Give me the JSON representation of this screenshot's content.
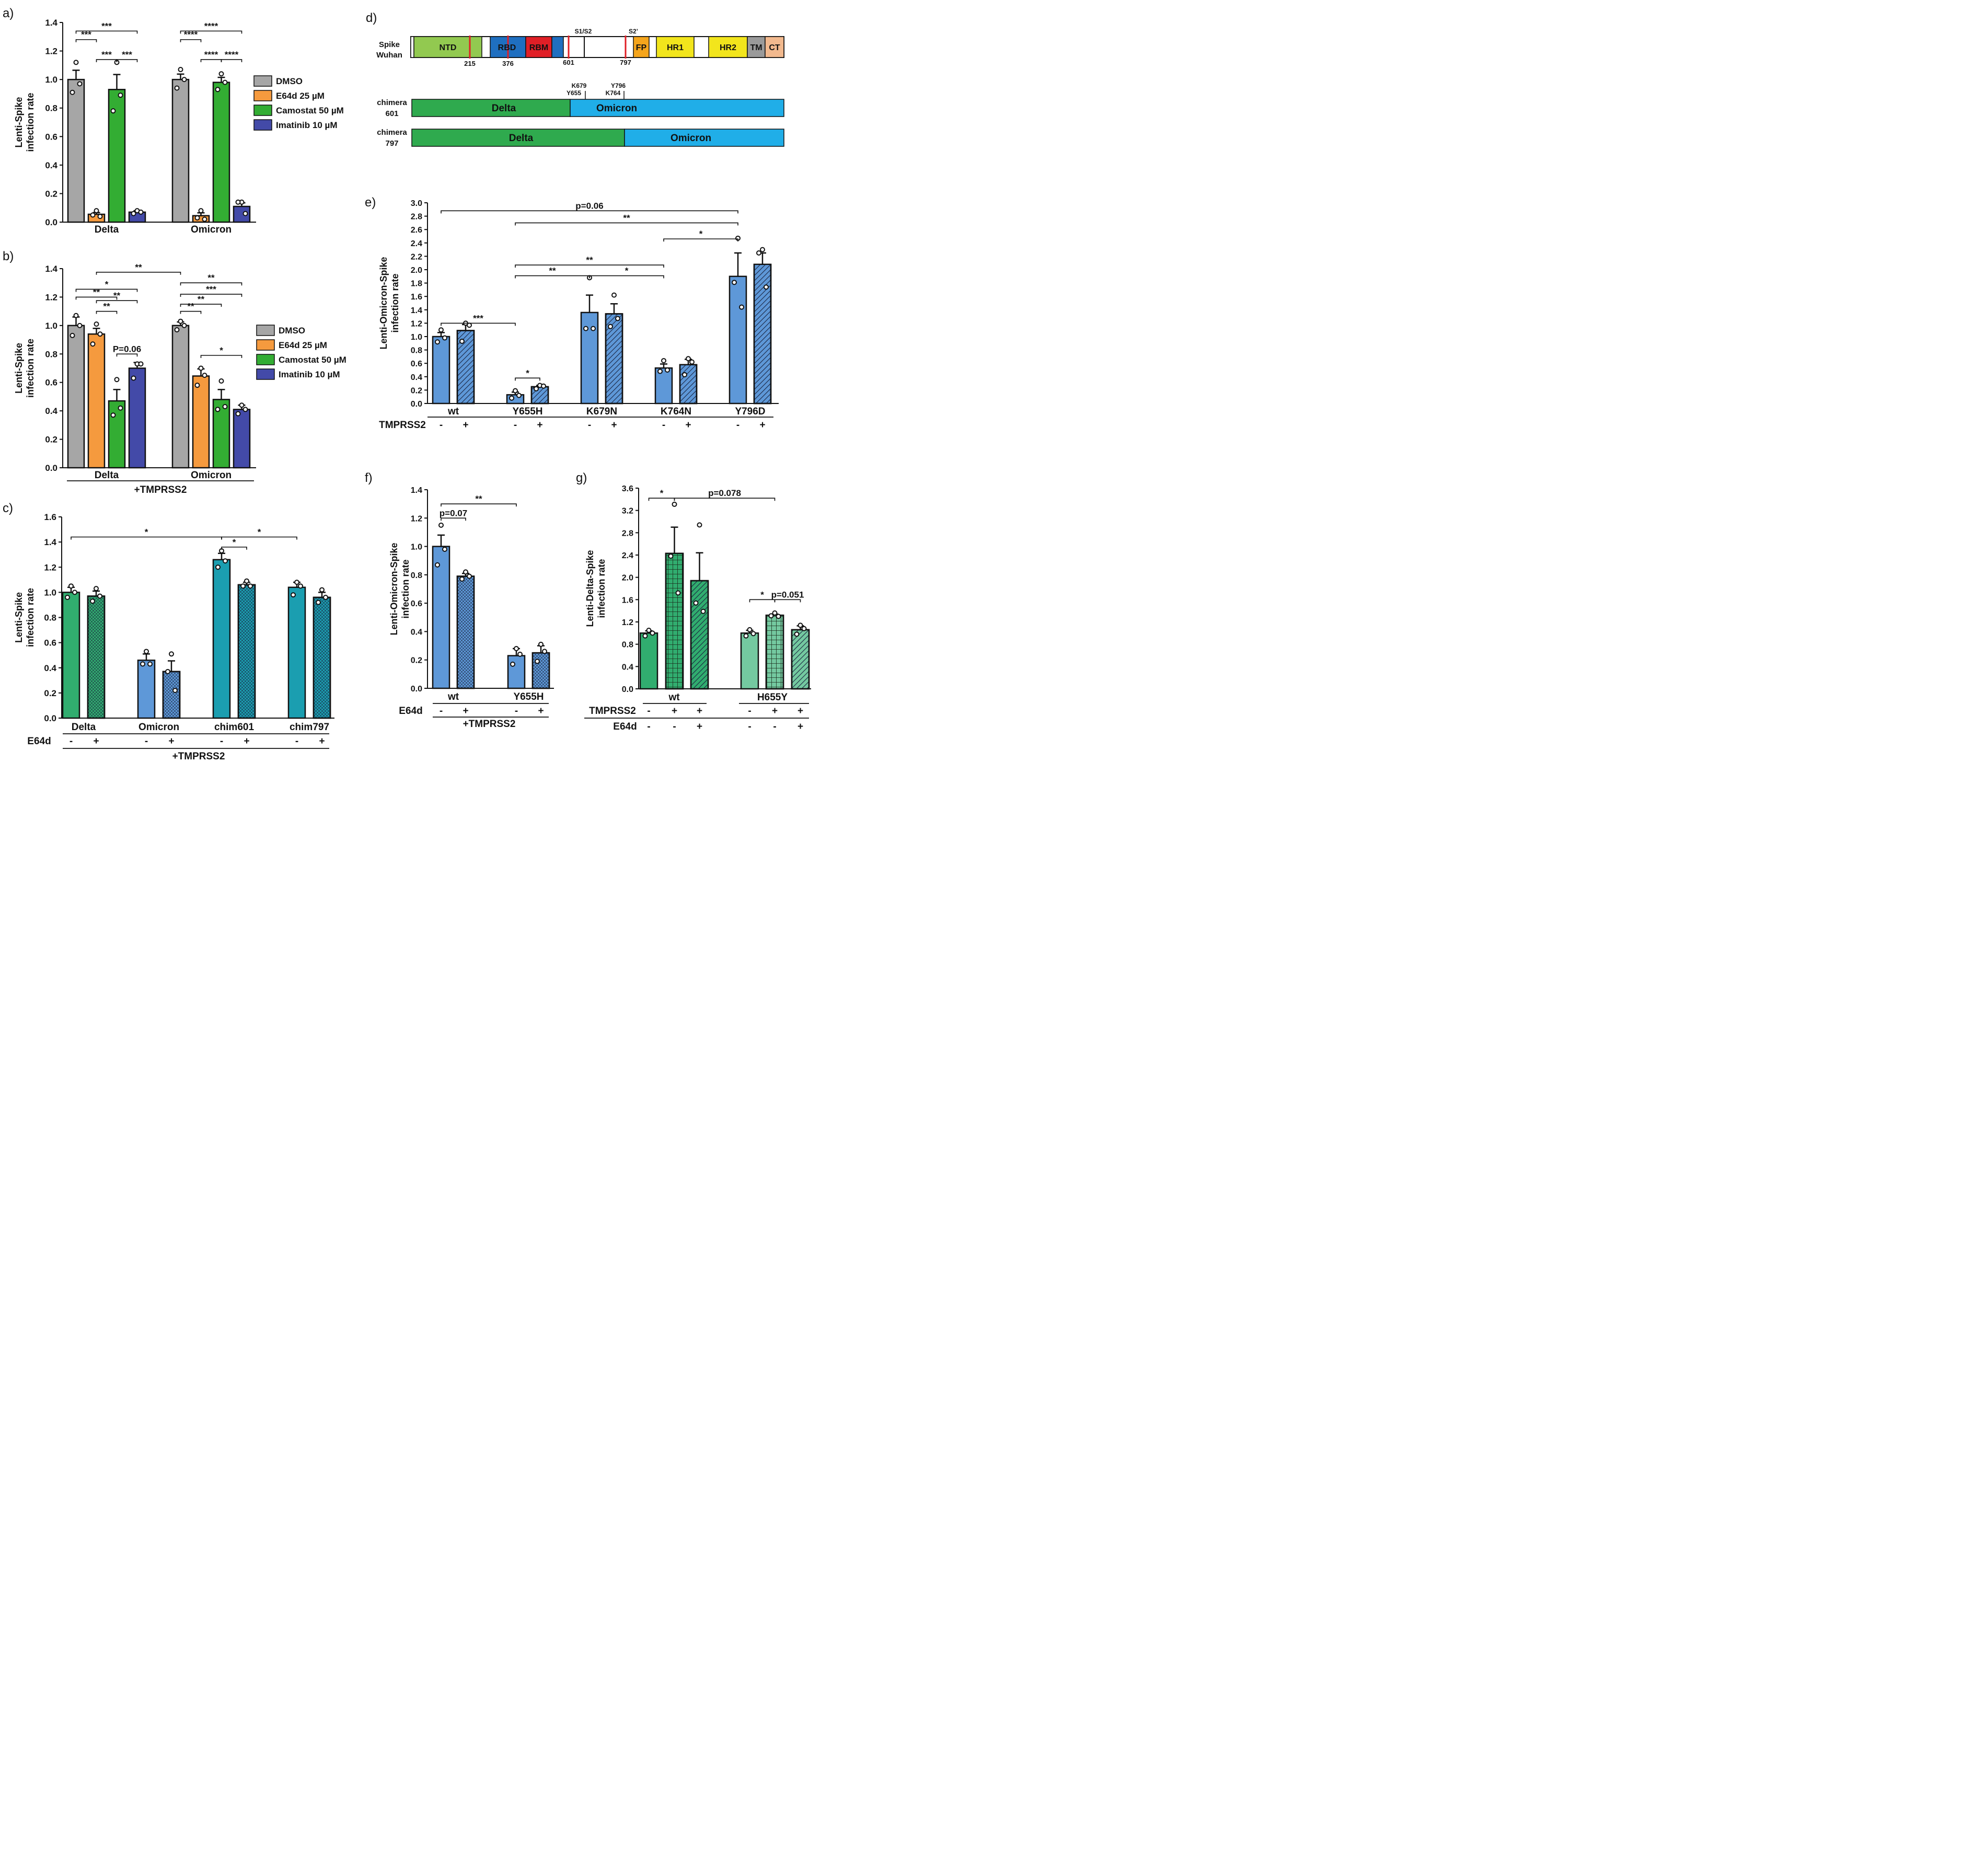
{
  "colors": {
    "DMSO": "#a6a6a6",
    "E64d": "#f59a3e",
    "Camostat": "#33ad33",
    "Imatinib": "#434aa8",
    "delta_green": "#31ad6f",
    "omicron_blue": "#5e98d8",
    "chimera_teal": "#1b9eb0",
    "delta_light": "#74c9a0",
    "chim_delta": "#2faa4e",
    "chim_omicron": "#20aee8"
  },
  "chart_data": [
    {
      "id": "a",
      "panel_label": "a)",
      "type": "bar",
      "ylabel": [
        "Lenti-Spike",
        "infection rate"
      ],
      "ylim": [
        0,
        1.4
      ],
      "yticks": [
        "0.0",
        "0.2",
        "0.4",
        "0.6",
        "0.8",
        "1.0",
        "1.2",
        "1.4"
      ],
      "categories": [
        "Delta",
        "Omicron"
      ],
      "series": [
        {
          "name": "DMSO",
          "color": "#a6a6a6",
          "values": [
            1.0,
            1.0
          ],
          "err": [
            0.065,
            0.038
          ],
          "points": [
            [
              1.12,
              0.91,
              0.97
            ],
            [
              1.07,
              0.94,
              1.0
            ]
          ]
        },
        {
          "name": "E64d 25 µM",
          "color": "#f59a3e",
          "values": [
            0.055,
            0.045
          ],
          "err": [
            0.012,
            0.02
          ],
          "points": [
            [
              0.08,
              0.05,
              0.04
            ],
            [
              0.08,
              0.03,
              0.02
            ]
          ]
        },
        {
          "name": "Camostat 50 µM",
          "color": "#33ad33",
          "values": [
            0.93,
            0.98
          ],
          "err": [
            0.105,
            0.035
          ],
          "points": [
            [
              1.12,
              0.78,
              0.89
            ],
            [
              1.04,
              0.93,
              0.98
            ]
          ]
        },
        {
          "name": "Imatinib 10 µM",
          "color": "#434aa8",
          "values": [
            0.07,
            0.11
          ],
          "err": [
            0.01,
            0.025
          ],
          "points": [
            [
              0.08,
              0.06,
              0.07
            ],
            [
              0.14,
              0.14,
              0.06
            ]
          ]
        }
      ],
      "legend": [
        "DMSO",
        "E64d 25 µM",
        "Camostat 50 µM",
        "Imatinib 10 µM"
      ],
      "annotations": [
        "***",
        "***",
        "***",
        "***",
        "****",
        "****",
        "****",
        "****"
      ]
    },
    {
      "id": "b",
      "panel_label": "b)",
      "type": "bar",
      "ylabel": [
        "Lenti-Spike",
        "infection rate"
      ],
      "ylim": [
        0,
        1.4
      ],
      "yticks": [
        "0.0",
        "0.2",
        "0.4",
        "0.6",
        "0.8",
        "1.0",
        "1.2",
        "1.4"
      ],
      "categories": [
        "Delta",
        "Omicron"
      ],
      "group_label": "+TMPRSS2",
      "series": [
        {
          "name": "DMSO",
          "color": "#a6a6a6",
          "values": [
            1.0,
            1.0
          ],
          "err": [
            0.06,
            0.025
          ],
          "points": [
            [
              1.07,
              0.93,
              1.0
            ],
            [
              1.03,
              0.97,
              1.0
            ]
          ]
        },
        {
          "name": "E64d 25 µM",
          "color": "#f59a3e",
          "values": [
            0.94,
            0.645
          ],
          "err": [
            0.04,
            0.05
          ],
          "points": [
            [
              1.01,
              0.87,
              0.94
            ],
            [
              0.7,
              0.58,
              0.65
            ]
          ]
        },
        {
          "name": "Camostat 50 µM",
          "color": "#33ad33",
          "values": [
            0.47,
            0.48
          ],
          "err": [
            0.08,
            0.07
          ],
          "points": [
            [
              0.62,
              0.37,
              0.42
            ],
            [
              0.61,
              0.41,
              0.43
            ]
          ]
        },
        {
          "name": "Imatinib 10 µM",
          "color": "#434aa8",
          "values": [
            0.7,
            0.41
          ],
          "err": [
            0.04,
            0.03
          ],
          "points": [
            [
              0.73,
              0.63,
              0.73
            ],
            [
              0.44,
              0.38,
              0.41
            ]
          ]
        }
      ],
      "legend": [
        "DMSO",
        "E64d 25 µM",
        "Camostat 50 µM",
        "Imatinib 10 µM"
      ],
      "annotations": [
        "**",
        "*",
        "**",
        "**",
        "**",
        "P=0.06",
        "**",
        "***",
        "**",
        "**",
        "*"
      ]
    },
    {
      "id": "c",
      "panel_label": "c)",
      "type": "bar",
      "ylabel": [
        "Lenti-Spike",
        "infection rate"
      ],
      "ylim": [
        0,
        1.6
      ],
      "yticks": [
        "0.0",
        "0.2",
        "0.4",
        "0.6",
        "0.8",
        "1.0",
        "1.2",
        "1.4",
        "1.6"
      ],
      "categories": [
        "Delta",
        "Omicron",
        "chim601",
        "chim797"
      ],
      "treatment_label": "E64d",
      "treatment_values": [
        "-",
        "+",
        "-",
        "+",
        "-",
        "+",
        "-",
        "+"
      ],
      "group_label": "+TMPRSS2",
      "bars": [
        {
          "value": 1.0,
          "err": 0.04,
          "color": "#31ad6f",
          "hatch": false,
          "points": [
            1.05,
            0.96,
            1.0
          ]
        },
        {
          "value": 0.97,
          "err": 0.04,
          "color": "#31ad6f",
          "hatch": true,
          "points": [
            1.03,
            0.93,
            0.97
          ]
        },
        {
          "value": 0.46,
          "err": 0.05,
          "color": "#5e98d8",
          "hatch": false,
          "points": [
            0.53,
            0.43,
            0.43
          ]
        },
        {
          "value": 0.37,
          "err": 0.085,
          "color": "#5e98d8",
          "hatch": true,
          "points": [
            0.51,
            0.37,
            0.22
          ]
        },
        {
          "value": 1.26,
          "err": 0.05,
          "color": "#1b9eb0",
          "hatch": false,
          "points": [
            1.33,
            1.2,
            1.25
          ]
        },
        {
          "value": 1.06,
          "err": 0.02,
          "color": "#1b9eb0",
          "hatch": true,
          "points": [
            1.09,
            1.05,
            1.05
          ]
        },
        {
          "value": 1.04,
          "err": 0.04,
          "color": "#1b9eb0",
          "hatch": false,
          "points": [
            1.08,
            0.98,
            1.05
          ]
        },
        {
          "value": 0.96,
          "err": 0.04,
          "color": "#1b9eb0",
          "hatch": true,
          "points": [
            1.02,
            0.92,
            0.96
          ]
        }
      ],
      "annotations": [
        "*",
        "*",
        "*"
      ]
    },
    {
      "id": "e",
      "panel_label": "e)",
      "type": "bar",
      "ylabel": [
        "Lenti-Omicron-Spike",
        "infection rate"
      ],
      "ylim": [
        0,
        3.0
      ],
      "yticks": [
        "0.0",
        "0.2",
        "0.4",
        "0.6",
        "0.8",
        "1.0",
        "1.2",
        "1.4",
        "1.6",
        "1.8",
        "2.0",
        "2.2",
        "2.4",
        "2.6",
        "2.8",
        "3.0"
      ],
      "categories": [
        "wt",
        "Y655H",
        "K679N",
        "K764N",
        "Y796D"
      ],
      "treatment_label": "TMPRSS2",
      "treatment_values": [
        "-",
        "+",
        "-",
        "+",
        "-",
        "+",
        "-",
        "+",
        "-",
        "+"
      ],
      "bars": [
        {
          "value": 1.0,
          "err": 0.06,
          "color": "#5e98d8",
          "hatch": false,
          "points": [
            1.1,
            0.92,
            0.98
          ]
        },
        {
          "value": 1.09,
          "err": 0.09,
          "color": "#5e98d8",
          "hatch": true,
          "points": [
            1.2,
            0.93,
            1.17
          ]
        },
        {
          "value": 0.13,
          "err": 0.04,
          "color": "#5e98d8",
          "hatch": false,
          "points": [
            0.19,
            0.08,
            0.12
          ]
        },
        {
          "value": 0.25,
          "err": 0.02,
          "color": "#5e98d8",
          "hatch": true,
          "points": [
            0.27,
            0.22,
            0.26
          ]
        },
        {
          "value": 1.36,
          "err": 0.26,
          "color": "#5e98d8",
          "hatch": false,
          "points": [
            1.88,
            1.12,
            1.12
          ]
        },
        {
          "value": 1.34,
          "err": 0.15,
          "color": "#5e98d8",
          "hatch": true,
          "points": [
            1.62,
            1.15,
            1.27
          ]
        },
        {
          "value": 0.53,
          "err": 0.06,
          "color": "#5e98d8",
          "hatch": false,
          "points": [
            0.64,
            0.48,
            0.5
          ]
        },
        {
          "value": 0.58,
          "err": 0.08,
          "color": "#5e98d8",
          "hatch": true,
          "points": [
            0.67,
            0.43,
            0.62
          ]
        },
        {
          "value": 1.9,
          "err": 0.35,
          "color": "#5e98d8",
          "hatch": false,
          "points": [
            2.47,
            1.81,
            1.44
          ]
        },
        {
          "value": 2.08,
          "err": 0.17,
          "color": "#5e98d8",
          "hatch": true,
          "points": [
            2.3,
            2.25,
            1.74
          ]
        }
      ],
      "annotations": [
        "p=0.06",
        "**",
        "*",
        "**",
        "**",
        "*",
        "***",
        "*"
      ]
    },
    {
      "id": "f",
      "panel_label": "f)",
      "type": "bar",
      "ylabel": [
        "Lenti-Omicron-Spike",
        "infection rate"
      ],
      "ylim": [
        0,
        1.4
      ],
      "yticks": [
        "0.0",
        "0.2",
        "0.4",
        "0.6",
        "0.8",
        "1.0",
        "1.2",
        "1.4"
      ],
      "categories": [
        "wt",
        "Y655H"
      ],
      "treatment_label": "E64d",
      "treatment_values": [
        "-",
        "+",
        "-",
        "+"
      ],
      "group_label": "+TMPRSS2",
      "bars": [
        {
          "value": 1.0,
          "err": 0.08,
          "color": "#5e98d8",
          "hatch": false,
          "points": [
            1.15,
            0.87,
            0.98
          ]
        },
        {
          "value": 0.79,
          "err": 0.02,
          "color": "#5e98d8",
          "hatch": true,
          "points": [
            0.82,
            0.77,
            0.79
          ]
        },
        {
          "value": 0.23,
          "err": 0.05,
          "color": "#5e98d8",
          "hatch": false,
          "points": [
            0.28,
            0.17,
            0.24
          ]
        },
        {
          "value": 0.25,
          "err": 0.05,
          "color": "#5e98d8",
          "hatch": true,
          "points": [
            0.31,
            0.19,
            0.26
          ]
        }
      ],
      "annotations": [
        "**",
        "p=0.07"
      ]
    },
    {
      "id": "g",
      "panel_label": "g)",
      "type": "bar",
      "ylabel": [
        "Lenti-Delta-Spike",
        "infection rate"
      ],
      "ylim": [
        0,
        3.6
      ],
      "yticks": [
        "0.0",
        "0.4",
        "0.8",
        "1.2",
        "1.6",
        "2.0",
        "2.4",
        "2.8",
        "3.2",
        "3.6"
      ],
      "categories": [
        "wt",
        "H655Y"
      ],
      "treatment_labels": [
        "TMPRSS2",
        "E64d"
      ],
      "treatment_rows": [
        [
          "-",
          "+",
          "+",
          "-",
          "+",
          "+"
        ],
        [
          "-",
          "-",
          "+",
          "-",
          "-",
          "+"
        ]
      ],
      "bars": [
        {
          "value": 1.0,
          "err": 0.04,
          "color": "#31ad6f",
          "hatch": false,
          "points": [
            1.05,
            0.95,
            1.0
          ]
        },
        {
          "value": 2.43,
          "err": 0.47,
          "color": "#31ad6f",
          "hatch": "grid",
          "points": [
            3.31,
            2.38,
            1.72
          ]
        },
        {
          "value": 1.94,
          "err": 0.5,
          "color": "#31ad6f",
          "hatch": true,
          "points": [
            2.94,
            1.54,
            1.39
          ]
        },
        {
          "value": 1.0,
          "err": 0.05,
          "color": "#74c9a0",
          "hatch": false,
          "points": [
            1.06,
            0.95,
            0.99
          ]
        },
        {
          "value": 1.32,
          "err": 0.02,
          "color": "#74c9a0",
          "hatch": "grid",
          "points": [
            1.36,
            1.31,
            1.3
          ]
        },
        {
          "value": 1.06,
          "err": 0.07,
          "color": "#74c9a0",
          "hatch": true,
          "points": [
            1.14,
            0.98,
            1.08
          ]
        }
      ],
      "annotations": [
        "*",
        "p=0.078",
        "*",
        "p=0.051"
      ]
    }
  ],
  "panel_d": {
    "panel_label": "d)",
    "row_label_1": [
      "Spike",
      "Wuhan"
    ],
    "domains": [
      "NTD",
      "RBD",
      "RBM",
      "FP",
      "HR1",
      "HR2",
      "TM",
      "CT"
    ],
    "site_labels": [
      "S1/S2",
      "S2’"
    ],
    "position_labels": [
      "215",
      "376",
      "601",
      "797"
    ],
    "mutation_labels_601": [
      "K679",
      "Y655",
      "Y796",
      "K764"
    ],
    "chimera_601_label": [
      "chimera",
      "601"
    ],
    "chimera_797_label": [
      "chimera",
      "797"
    ],
    "chimera_segments": [
      "Delta",
      "Omicron"
    ]
  }
}
